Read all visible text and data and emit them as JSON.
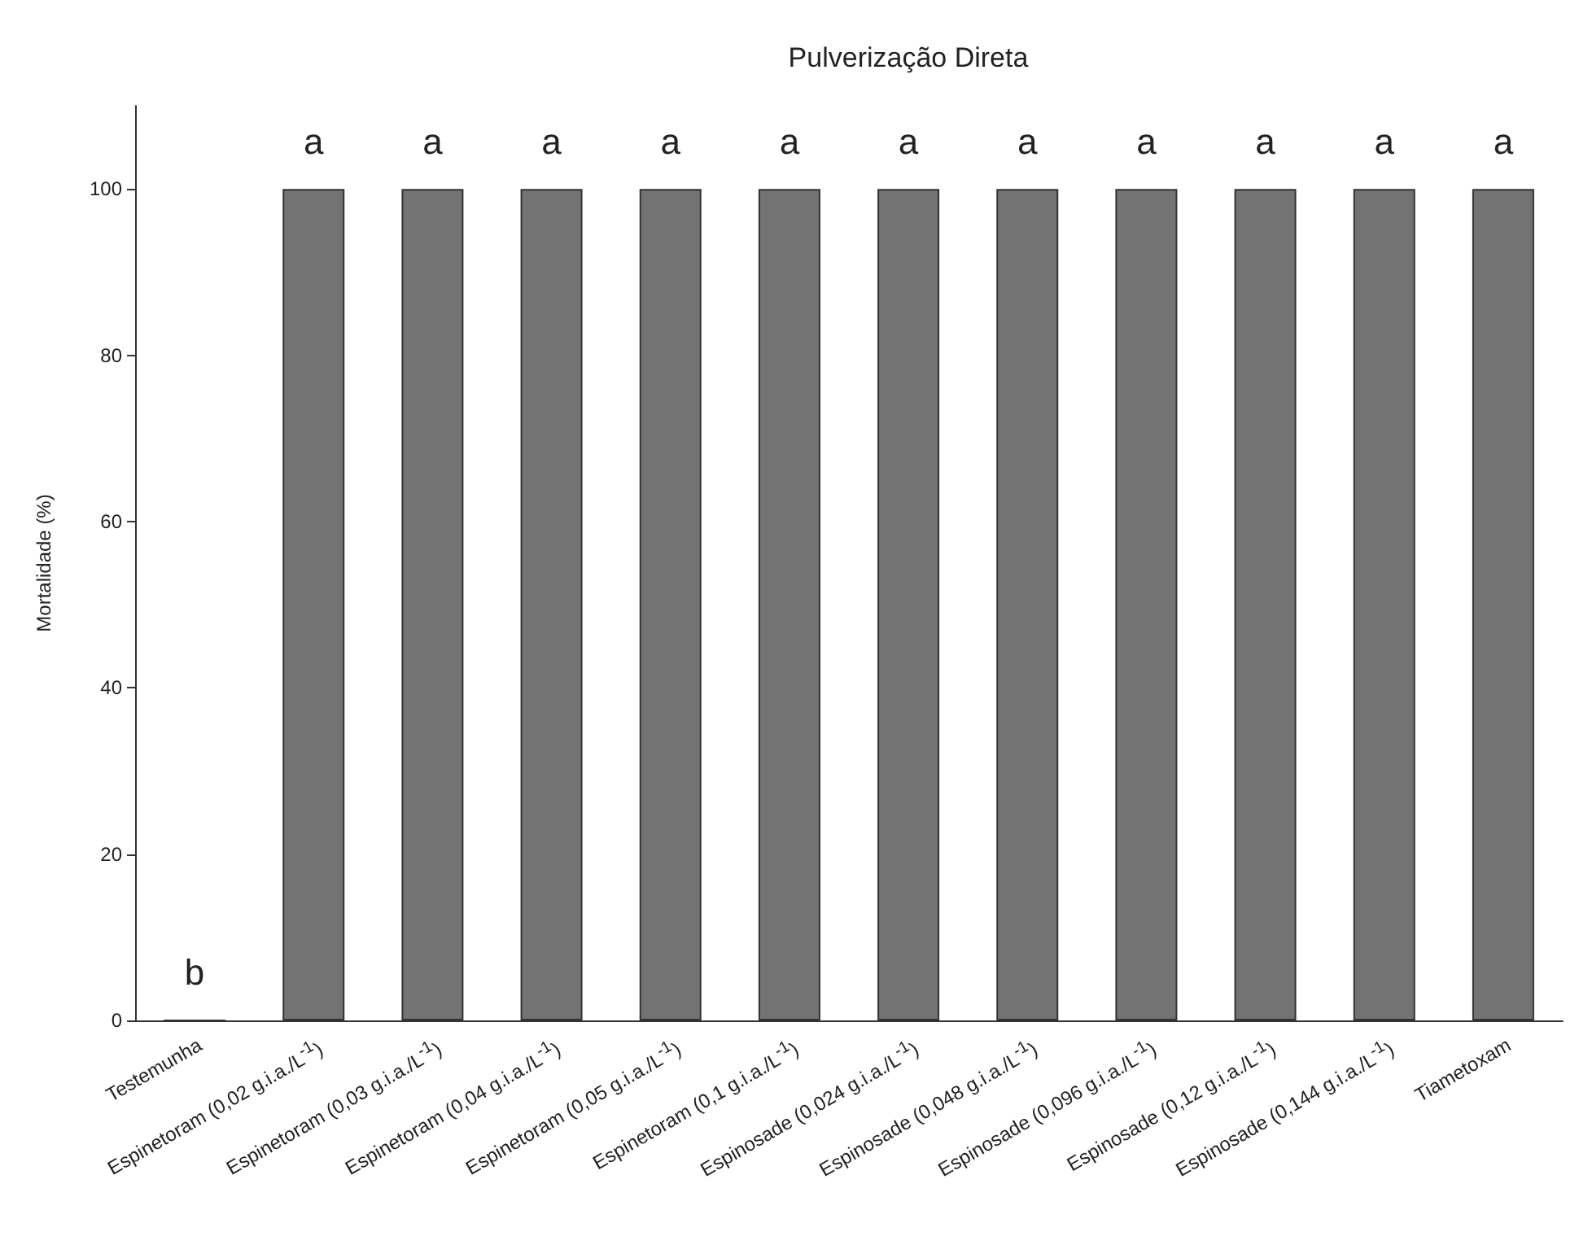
{
  "chart_data": {
    "type": "bar",
    "title": "Pulverização Direta",
    "ylabel": "Mortalidade (%)",
    "categories": [
      "Testemunha",
      "Espinetoram (0,02 g.i.a./L$^{-1}$)",
      "Espinetoram (0,03 g.i.a./L$^{-1}$)",
      "Espinetoram (0,04 g.i.a./L$^{-1}$)",
      "Espinetoram (0,05 g.i.a./L$^{-1}$)",
      "Espinetoram (0,1 g.i.a./L$^{-1}$)",
      "Espinosade (0,024 g.i.a./L$^{-1}$)",
      "Espinosade (0,048 g.i.a./L$^{-1}$)",
      "Espinosade (0,096 g.i.a./L$^{-1}$)",
      "Espinosade (0,12 g.i.a./L$^{-1}$)",
      "Espinosade (0,144 g.i.a./L$^{-1}$)",
      "Tiametoxam"
    ],
    "values": [
      0,
      100,
      100,
      100,
      100,
      100,
      100,
      100,
      100,
      100,
      100,
      100
    ],
    "value_labels": [
      "b",
      "a",
      "a",
      "a",
      "a",
      "a",
      "a",
      "a",
      "a",
      "a",
      "a",
      "a"
    ],
    "color": "#737373",
    "ylim": [
      0,
      110
    ],
    "yticks": [
      0,
      20,
      40,
      60,
      80,
      100
    ],
    "grid": false
  }
}
